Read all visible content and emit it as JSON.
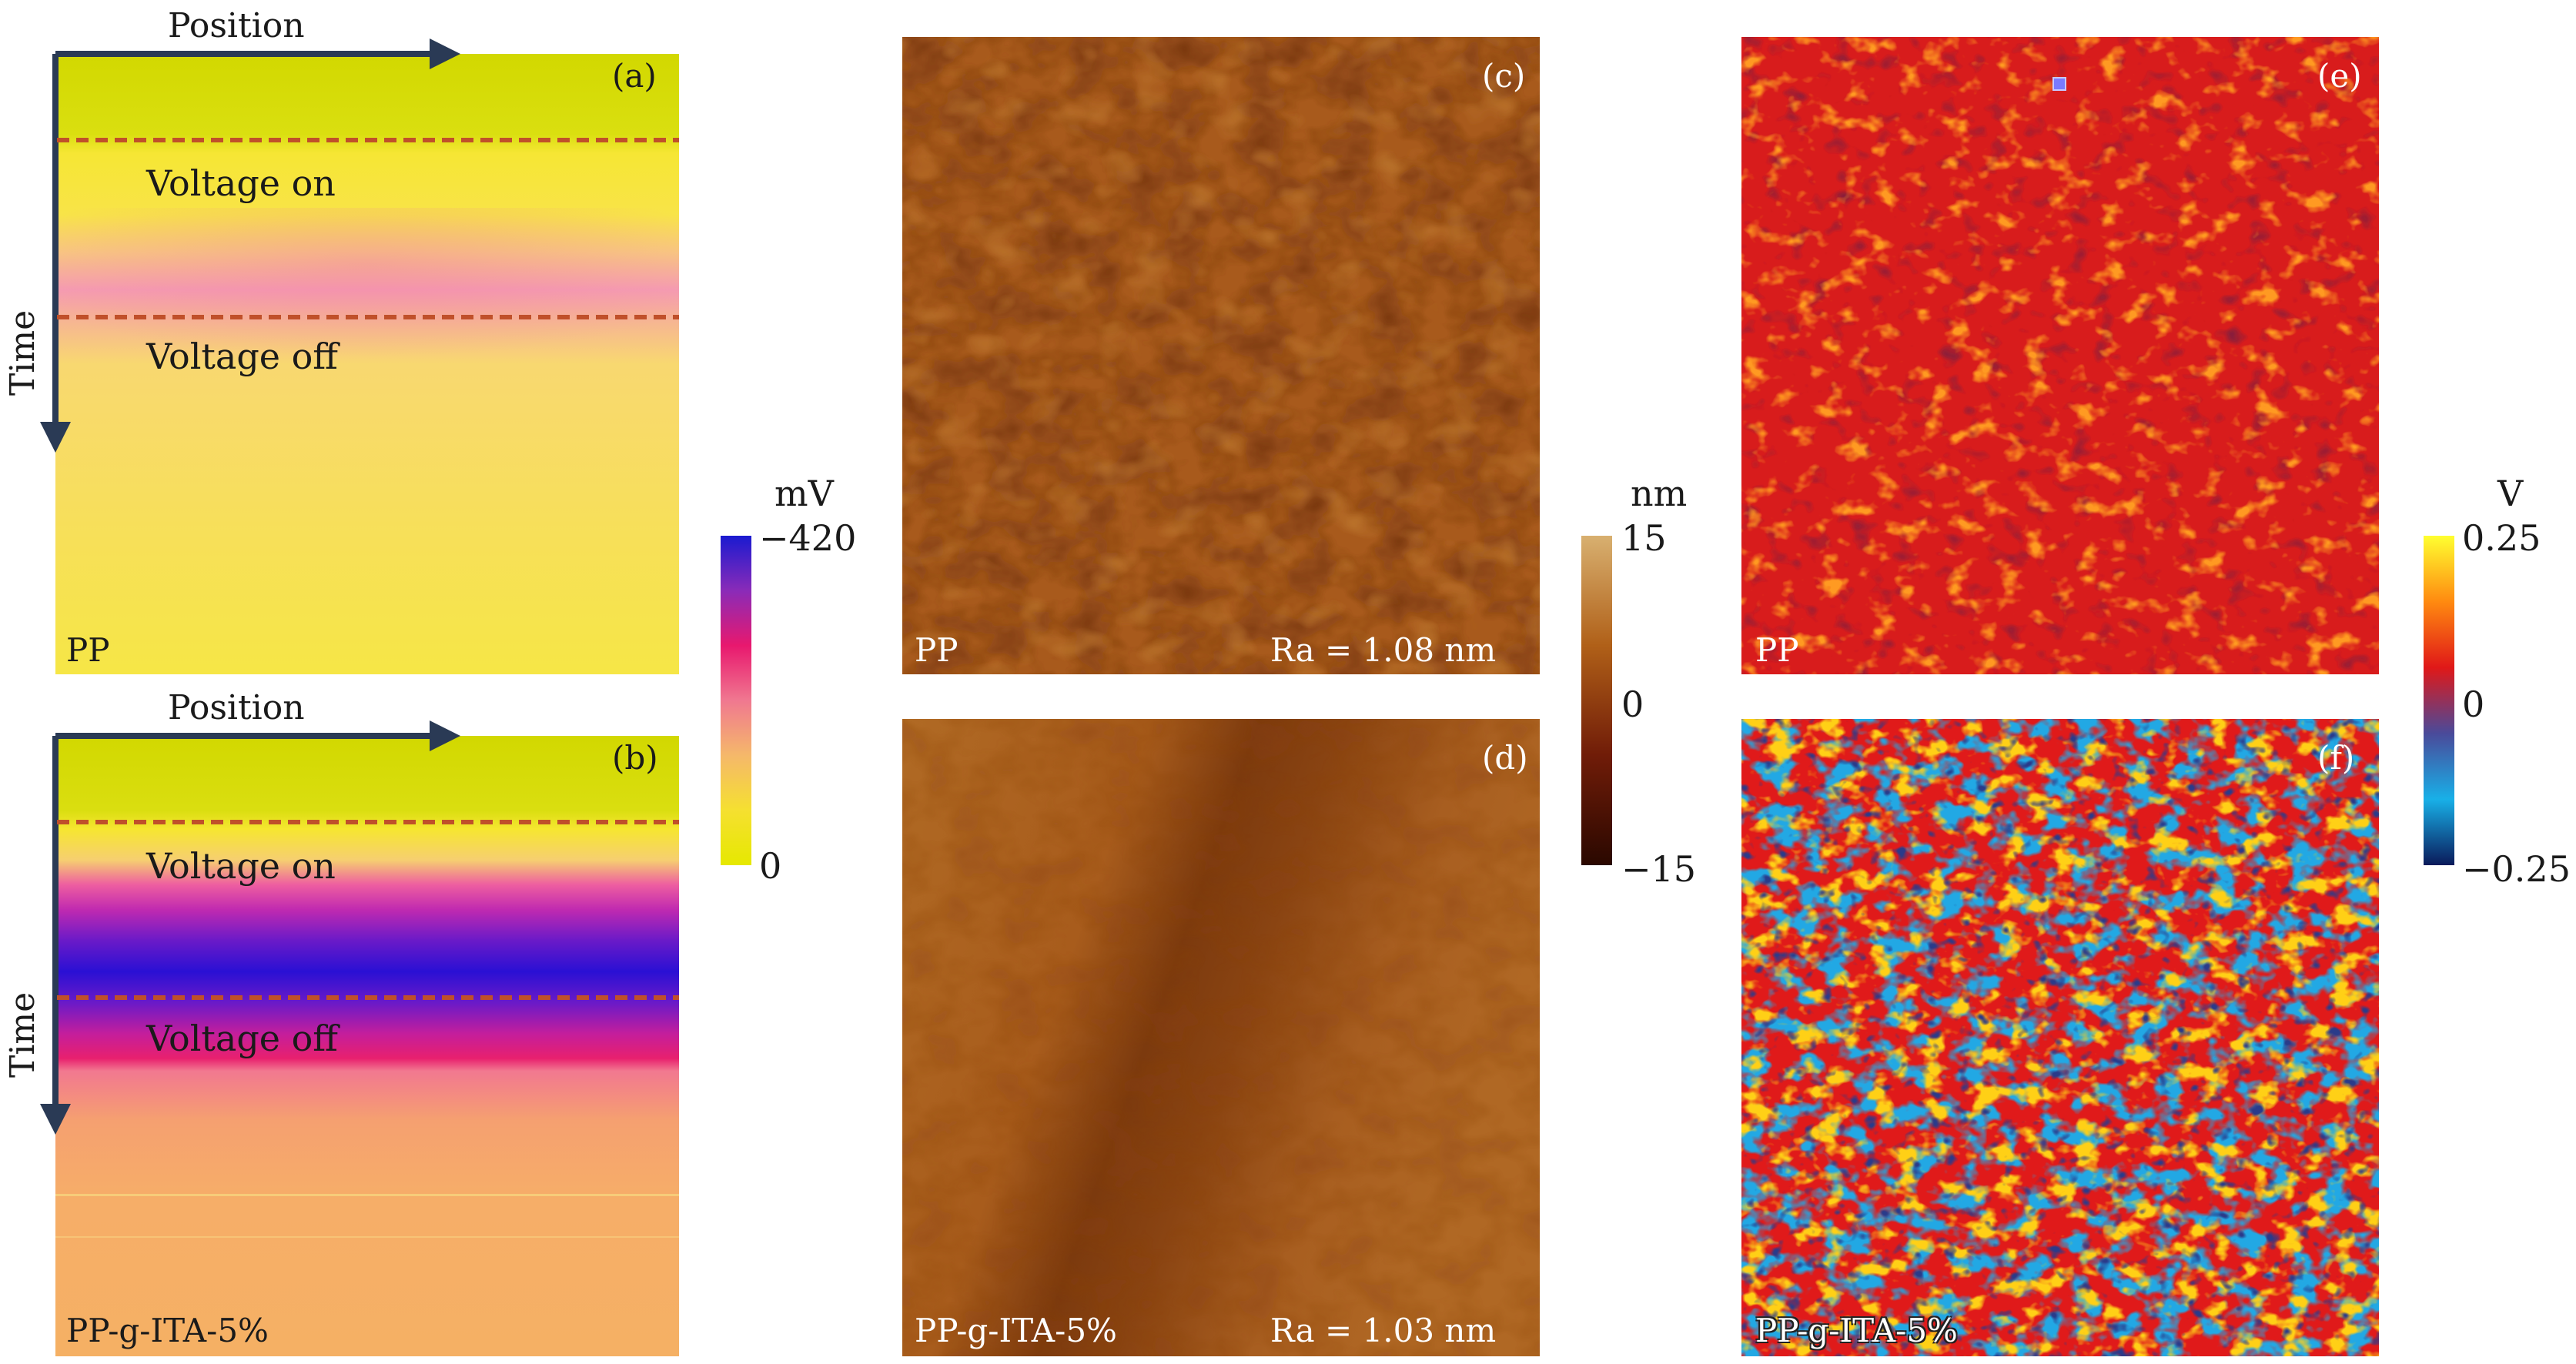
{
  "panels": {
    "a": {
      "letter": "(a)",
      "material": "PP",
      "voltage_on": "Voltage on",
      "voltage_off": "Voltage off",
      "x_axis": "Position",
      "y_axis": "Time"
    },
    "b": {
      "letter": "(b)",
      "material": "PP-g-ITA-5%",
      "voltage_on": "Voltage on",
      "voltage_off": "Voltage off",
      "x_axis": "Position",
      "y_axis": "Time"
    },
    "c": {
      "letter": "(c)",
      "material": "PP",
      "roughness": "Ra = 1.08 nm"
    },
    "d": {
      "letter": "(d)",
      "material": "PP-g-ITA-5%",
      "roughness": "Ra = 1.03 nm"
    },
    "e": {
      "letter": "(e)",
      "material": "PP"
    },
    "f": {
      "letter": "(f)",
      "material": "PP-g-ITA-5%"
    }
  },
  "colorbars": {
    "potential": {
      "unit": "mV",
      "max": "−420",
      "min": "0",
      "colors": [
        "#1a1ad0",
        "#8a2bb8",
        "#e8186e",
        "#f07890",
        "#f5b86a",
        "#f5e030",
        "#e6e800"
      ]
    },
    "height": {
      "unit": "nm",
      "max": "15",
      "mid": "0",
      "min": "−15",
      "colors": [
        "#d8b070",
        "#b06018",
        "#701c08",
        "#2a0800"
      ]
    },
    "voltage": {
      "unit": "V",
      "max": "0.25",
      "mid": "0",
      "min": "−0.25",
      "colors": [
        "#ffff30",
        "#ff8a10",
        "#e01818",
        "#4a4a9a",
        "#18b0e8",
        "#0a1a5a"
      ]
    }
  },
  "colors": {
    "dash_line": "#c0502a",
    "arrow": "#2a3a55",
    "pp_top": "#d6dc00",
    "pp_body": "#f7e64a",
    "pp_band": "#f59ab0"
  }
}
